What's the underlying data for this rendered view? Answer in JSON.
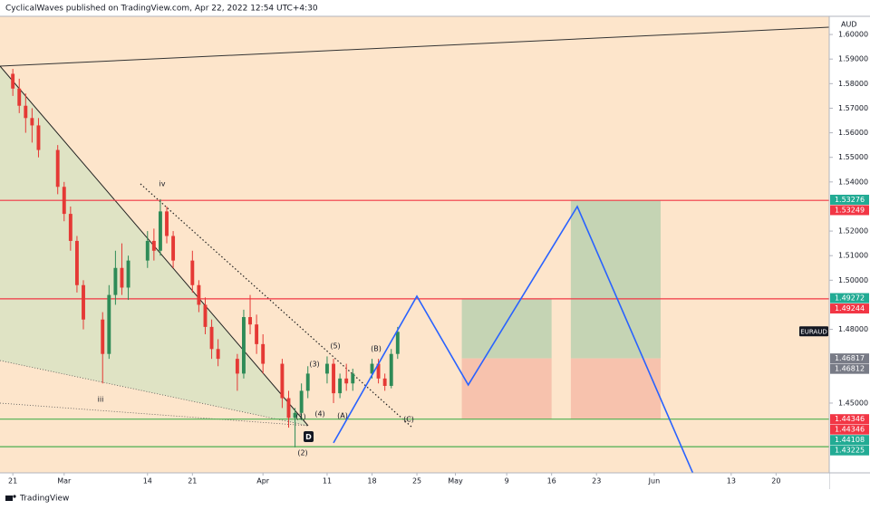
{
  "header": "CyclicalWaves published on TradingView.com, Apr 22, 2022 12:54 UTC+4:30",
  "footer": "TradingView",
  "chart_data": {
    "type": "candlestick",
    "currency": "AUD",
    "symbol": "EURAUD",
    "x": [
      "2022-02-21",
      "2022-02-22",
      "2022-02-23",
      "2022-02-24",
      "2022-02-25",
      "2022-02-28",
      "2022-03-01",
      "2022-03-02",
      "2022-03-03",
      "2022-03-04",
      "2022-03-07",
      "2022-03-08",
      "2022-03-09",
      "2022-03-10",
      "2022-03-11",
      "2022-03-14",
      "2022-03-15",
      "2022-03-16",
      "2022-03-17",
      "2022-03-18",
      "2022-03-21",
      "2022-03-22",
      "2022-03-23",
      "2022-03-24",
      "2022-03-25",
      "2022-03-28",
      "2022-03-29",
      "2022-03-30",
      "2022-03-31",
      "2022-04-01",
      "2022-04-04",
      "2022-04-05",
      "2022-04-06",
      "2022-04-07",
      "2022-04-08",
      "2022-04-11",
      "2022-04-12",
      "2022-04-13",
      "2022-04-14",
      "2022-04-15",
      "2022-04-18",
      "2022-04-19",
      "2022-04-20",
      "2022-04-21",
      "2022-04-22"
    ],
    "open": [
      1.584,
      1.578,
      1.571,
      1.566,
      1.563,
      1.553,
      1.538,
      1.527,
      1.516,
      1.498,
      1.484,
      1.47,
      1.494,
      1.505,
      1.497,
      1.508,
      1.516,
      1.512,
      1.528,
      1.518,
      1.508,
      1.498,
      1.49,
      1.481,
      1.472,
      1.468,
      1.462,
      1.485,
      1.482,
      1.474,
      1.466,
      1.452,
      1.444,
      1.446,
      1.455,
      1.462,
      1.466,
      1.454,
      1.46,
      1.458,
      1.462,
      1.466,
      1.46,
      1.457,
      1.47
    ],
    "high": [
      1.586,
      1.582,
      1.576,
      1.57,
      1.566,
      1.555,
      1.54,
      1.53,
      1.518,
      1.5,
      1.487,
      1.498,
      1.512,
      1.515,
      1.51,
      1.52,
      1.521,
      1.533,
      1.53,
      1.52,
      1.512,
      1.5,
      1.493,
      1.484,
      1.476,
      1.47,
      1.488,
      1.494,
      1.486,
      1.478,
      1.468,
      1.455,
      1.448,
      1.458,
      1.465,
      1.469,
      1.468,
      1.462,
      1.466,
      1.464,
      1.468,
      1.468,
      1.462,
      1.472,
      1.481
    ],
    "low": [
      1.575,
      1.568,
      1.56,
      1.556,
      1.55,
      1.535,
      1.524,
      1.512,
      1.495,
      1.48,
      1.458,
      1.468,
      1.49,
      1.494,
      1.492,
      1.505,
      1.508,
      1.51,
      1.515,
      1.505,
      1.495,
      1.487,
      1.478,
      1.468,
      1.465,
      1.455,
      1.46,
      1.478,
      1.47,
      1.462,
      1.448,
      1.44,
      1.432,
      1.443,
      1.452,
      1.458,
      1.45,
      1.452,
      1.455,
      1.455,
      1.46,
      1.458,
      1.455,
      1.456,
      1.468
    ],
    "close": [
      1.578,
      1.571,
      1.566,
      1.563,
      1.553,
      1.538,
      1.527,
      1.516,
      1.498,
      1.484,
      1.47,
      1.494,
      1.505,
      1.497,
      1.508,
      1.516,
      1.512,
      1.528,
      1.518,
      1.508,
      1.498,
      1.49,
      1.481,
      1.472,
      1.468,
      1.462,
      1.485,
      1.482,
      1.474,
      1.466,
      1.452,
      1.444,
      1.446,
      1.455,
      1.462,
      1.466,
      1.454,
      1.46,
      1.458,
      1.462,
      1.466,
      1.46,
      1.457,
      1.47,
      1.479
    ],
    "up_color": "#2e8b57",
    "down_color": "#e53935",
    "xlim": [
      "2022-02-19",
      "2022-06-28"
    ],
    "ylim": [
      1.4216,
      1.6074
    ],
    "xticks": [
      {
        "value": "2022-02-21",
        "label": "21"
      },
      {
        "value": "2022-03-01",
        "label": "Mar"
      },
      {
        "value": "2022-03-14",
        "label": "14"
      },
      {
        "value": "2022-03-21",
        "label": "21"
      },
      {
        "value": "2022-04-01",
        "label": "Apr"
      },
      {
        "value": "2022-04-11",
        "label": "11"
      },
      {
        "value": "2022-04-18",
        "label": "18"
      },
      {
        "value": "2022-04-25",
        "label": "25"
      },
      {
        "value": "2022-05-01",
        "label": "May"
      },
      {
        "value": "2022-05-09",
        "label": "9"
      },
      {
        "value": "2022-05-16",
        "label": "16"
      },
      {
        "value": "2022-05-23",
        "label": "23"
      },
      {
        "value": "2022-06-01",
        "label": "Jun"
      },
      {
        "value": "2022-06-13",
        "label": "13"
      },
      {
        "value": "2022-06-20",
        "label": "20"
      }
    ],
    "yticks": [
      {
        "value": 1.6,
        "label": "1.60000"
      },
      {
        "value": 1.59,
        "label": "1.59000"
      },
      {
        "value": 1.58,
        "label": "1.58000"
      },
      {
        "value": 1.57,
        "label": "1.57000"
      },
      {
        "value": 1.56,
        "label": "1.56000"
      },
      {
        "value": 1.55,
        "label": "1.55000"
      },
      {
        "value": 1.54,
        "label": "1.54000"
      },
      {
        "value": 1.52,
        "label": "1.52000"
      },
      {
        "value": 1.51,
        "label": "1.51000"
      },
      {
        "value": 1.5,
        "label": "1.50000"
      },
      {
        "value": 1.48,
        "label": "1.48000"
      },
      {
        "value": 1.45,
        "label": "1.45000"
      }
    ],
    "levels": [
      {
        "value": 1.53249,
        "color": "#f23645"
      },
      {
        "value": 1.49244,
        "color": "#f23645"
      },
      {
        "value": 1.44346,
        "color": "#4caf50"
      },
      {
        "value": 1.43225,
        "color": "#4caf50"
      }
    ],
    "price_labels": [
      {
        "value": 1.53276,
        "color": "#22ab94"
      },
      {
        "value": 1.53249,
        "color": "#f23645"
      },
      {
        "value": 1.49272,
        "color": "#22ab94"
      },
      {
        "value": 1.49244,
        "color": "#f23645"
      },
      {
        "value": 1.46817,
        "color": "#787b86"
      },
      {
        "value": 1.46812,
        "color": "#787b86"
      },
      {
        "value": 1.44346,
        "color": "#f23645"
      },
      {
        "value": 1.44346,
        "color": "#f23645"
      },
      {
        "value": 1.44108,
        "color": "#22ab94"
      },
      {
        "value": 1.43225,
        "color": "#22ab94"
      }
    ],
    "projection": {
      "color": "#2962ff",
      "x": [
        "2022-04-12",
        "2022-04-25",
        "2022-05-03",
        "2022-05-20",
        "2022-06-07"
      ],
      "values": [
        1.4338,
        1.4935,
        1.4574,
        1.53,
        1.4216
      ]
    },
    "positions": [
      {
        "x": [
          "2022-05-02",
          "2022-05-16"
        ],
        "target": 1.49244,
        "entry": 1.46817,
        "stop": 1.44346
      },
      {
        "x": [
          "2022-05-19",
          "2022-06-02"
        ],
        "target": 1.53249,
        "entry": 1.46817,
        "stop": 1.44346
      }
    ],
    "wave_labels": [
      "iii",
      "iv",
      "(1)",
      "(2)",
      "(3)",
      "(4)",
      "(5)",
      "(A)",
      "(B)",
      "(C)",
      "D"
    ]
  }
}
